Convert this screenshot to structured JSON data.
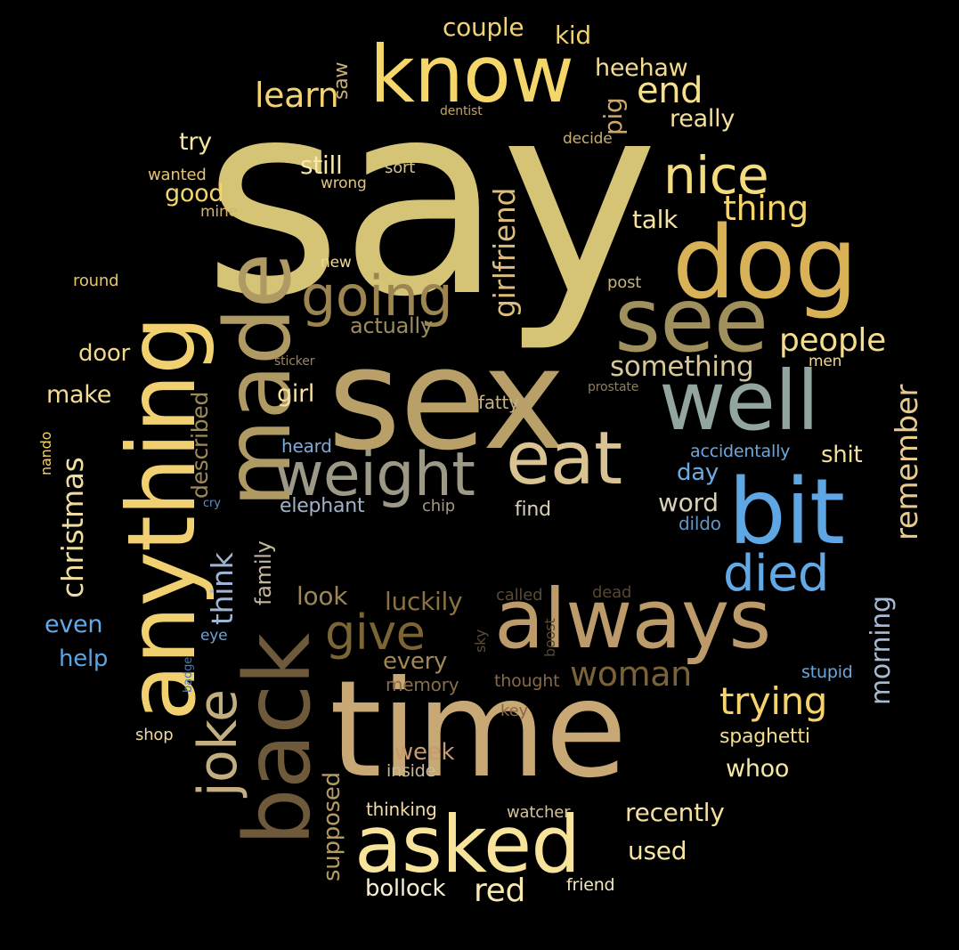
{
  "words": [
    {
      "text": "say",
      "color": "#d6c476"
    },
    {
      "text": "sex",
      "color": "#b9a068"
    },
    {
      "text": "time",
      "color": "#c8a874"
    },
    {
      "text": "know",
      "color": "#f5d66a"
    },
    {
      "text": "dog",
      "color": "#d9b257"
    },
    {
      "text": "see",
      "color": "#a0905e"
    },
    {
      "text": "well",
      "color": "#93a59f"
    },
    {
      "text": "bit",
      "color": "#5ea7e4"
    },
    {
      "text": "eat",
      "color": "#d9c390"
    },
    {
      "text": "weight",
      "color": "#9c9a87"
    },
    {
      "text": "always",
      "color": "#bc9a69"
    },
    {
      "text": "asked",
      "color": "#f8e39a"
    },
    {
      "text": "anything",
      "color": "#f0d070"
    },
    {
      "text": "back",
      "color": "#6e593a"
    },
    {
      "text": "made",
      "color": "#b09a64"
    },
    {
      "text": "going",
      "color": "#9c8551"
    },
    {
      "text": "nice",
      "color": "#f3dc7f"
    },
    {
      "text": "died",
      "color": "#62a9e6"
    },
    {
      "text": "give",
      "color": "#7c6534"
    },
    {
      "text": "joke",
      "color": "#c2ae80"
    },
    {
      "text": "trying",
      "color": "#f4d26c"
    },
    {
      "text": "woman",
      "color": "#7c6238"
    },
    {
      "text": "learn",
      "color": "#f3d470"
    },
    {
      "text": "end",
      "color": "#f6e08a"
    },
    {
      "text": "thing",
      "color": "#f4d46e"
    },
    {
      "text": "people",
      "color": "#f5dc8e"
    },
    {
      "text": "something",
      "color": "#d7c698"
    },
    {
      "text": "girlfriend",
      "color": "#dcbd7e"
    },
    {
      "text": "christmas",
      "color": "#efdca0"
    },
    {
      "text": "think",
      "color": "#9fb5d5"
    },
    {
      "text": "remember",
      "color": "#e8cb8b"
    },
    {
      "text": "morning",
      "color": "#a6bbd1"
    },
    {
      "text": "couple",
      "color": "#f1d374"
    },
    {
      "text": "kid",
      "color": "#f2d06c"
    },
    {
      "text": "heehaw",
      "color": "#f3dc91"
    },
    {
      "text": "pig",
      "color": "#cda76b"
    },
    {
      "text": "really",
      "color": "#f4dfa0"
    },
    {
      "text": "saw",
      "color": "#c9ad75"
    },
    {
      "text": "dentist",
      "color": "#c2a368"
    },
    {
      "text": "try",
      "color": "#f6e69f"
    },
    {
      "text": "still",
      "color": "#f6e8ad"
    },
    {
      "text": "sort",
      "color": "#d6c285"
    },
    {
      "text": "decide",
      "color": "#c4ad78"
    },
    {
      "text": "wanted",
      "color": "#e6c370"
    },
    {
      "text": "good",
      "color": "#f3d46e"
    },
    {
      "text": "wrong",
      "color": "#e1c581"
    },
    {
      "text": "mine",
      "color": "#d6b56a"
    },
    {
      "text": "talk",
      "color": "#f6e3a2"
    },
    {
      "text": "new",
      "color": "#efd892"
    },
    {
      "text": "round",
      "color": "#e7c56f"
    },
    {
      "text": "post",
      "color": "#c7b27b"
    },
    {
      "text": "actually",
      "color": "#9c8c5e"
    },
    {
      "text": "door",
      "color": "#f1d68b"
    },
    {
      "text": "sticker",
      "color": "#9b8660"
    },
    {
      "text": "men",
      "color": "#efd89a"
    },
    {
      "text": "make",
      "color": "#f4dc94"
    },
    {
      "text": "girl",
      "color": "#f6e0a2"
    },
    {
      "text": "prostate",
      "color": "#8f7d62"
    },
    {
      "text": "fatty",
      "color": "#c3b386"
    },
    {
      "text": "described",
      "color": "#9e8a58"
    },
    {
      "text": "nando",
      "color": "#f2d270"
    },
    {
      "text": "heard",
      "color": "#80aad6"
    },
    {
      "text": "accidentally",
      "color": "#6ca8de"
    },
    {
      "text": "shit",
      "color": "#f3e09a"
    },
    {
      "text": "day",
      "color": "#6cace5"
    },
    {
      "text": "elephant",
      "color": "#a3b3c7"
    },
    {
      "text": "chip",
      "color": "#a49a84"
    },
    {
      "text": "find",
      "color": "#d8d0b8"
    },
    {
      "text": "word",
      "color": "#d8d1b6"
    },
    {
      "text": "cry",
      "color": "#5e8fc0"
    },
    {
      "text": "dildo",
      "color": "#6196c9"
    },
    {
      "text": "family",
      "color": "#c2b79e"
    },
    {
      "text": "look",
      "color": "#9c8556"
    },
    {
      "text": "called",
      "color": "#5a4a34"
    },
    {
      "text": "dead",
      "color": "#574630"
    },
    {
      "text": "luckily",
      "color": "#8a7141"
    },
    {
      "text": "even",
      "color": "#64a8e6"
    },
    {
      "text": "eye",
      "color": "#6ea4d6"
    },
    {
      "text": "sky",
      "color": "#5a4b35"
    },
    {
      "text": "boost",
      "color": "#57472f"
    },
    {
      "text": "help",
      "color": "#5aa4e4"
    },
    {
      "text": "every",
      "color": "#a18853"
    },
    {
      "text": "badge",
      "color": "#4c7aa6"
    },
    {
      "text": "stupid",
      "color": "#6aa8df"
    },
    {
      "text": "memory",
      "color": "#8a6e47"
    },
    {
      "text": "thought",
      "color": "#876a45"
    },
    {
      "text": "shop",
      "color": "#eed9a6"
    },
    {
      "text": "key",
      "color": "#8b6844"
    },
    {
      "text": "spaghetti",
      "color": "#f3dc8f"
    },
    {
      "text": "week",
      "color": "#c99a6e"
    },
    {
      "text": "whoo",
      "color": "#f7e6a4"
    },
    {
      "text": "inside",
      "color": "#c8b898"
    },
    {
      "text": "supposed",
      "color": "#b79a62"
    },
    {
      "text": "thinking",
      "color": "#f4dca0"
    },
    {
      "text": "watcher",
      "color": "#d4c298"
    },
    {
      "text": "recently",
      "color": "#f5dfa0"
    },
    {
      "text": "used",
      "color": "#f7e5a0"
    },
    {
      "text": "bollock",
      "color": "#f7efd2"
    },
    {
      "text": "red",
      "color": "#f8e8b4"
    },
    {
      "text": "friend",
      "color": "#f2e6c4"
    }
  ]
}
